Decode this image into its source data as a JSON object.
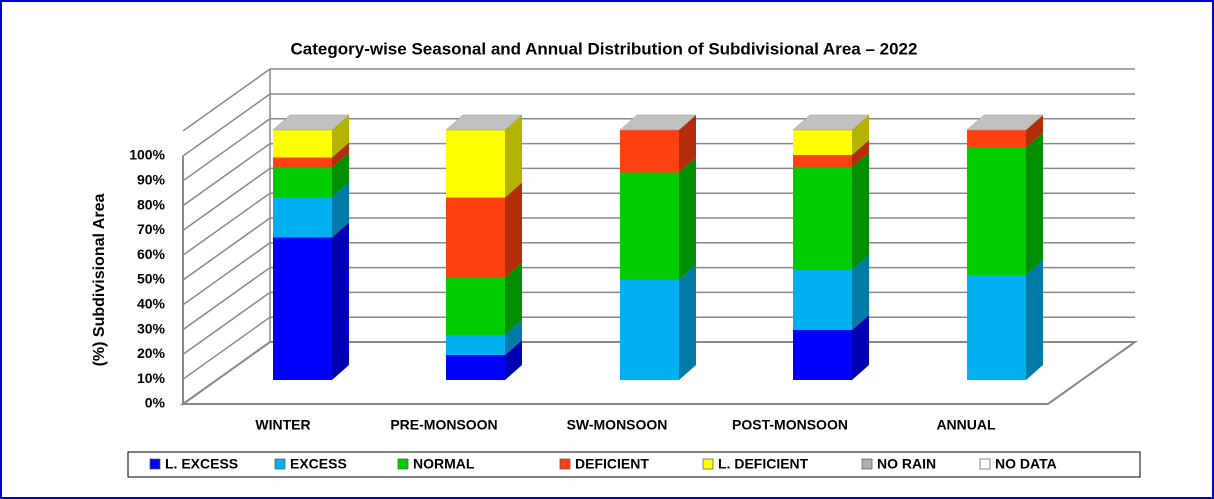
{
  "chart_data": {
    "type": "bar3d_stacked",
    "title": "Category-wise Seasonal and Annual Distribution of Subdivisional Area – 2022",
    "y_label": "(%) Subdivisional Area",
    "categories": [
      "WINTER",
      "PRE-MONSOON",
      "SW-MONSOON",
      "POST-MONSOON",
      "ANNUAL"
    ],
    "series": [
      {
        "name": "L. EXCESS",
        "color": "#0000ff",
        "values": [
          57,
          10,
          0,
          20,
          0
        ]
      },
      {
        "name": "EXCESS",
        "color": "#00b0f0",
        "values": [
          16,
          8,
          40,
          24,
          42
        ]
      },
      {
        "name": "NORMAL",
        "color": "#00cc00",
        "values": [
          12,
          23,
          43,
          41,
          51
        ]
      },
      {
        "name": "DEFICIENT",
        "color": "#ff4010",
        "values": [
          4,
          32,
          17,
          5,
          7
        ]
      },
      {
        "name": "L. DEFICIENT",
        "color": "#ffff00",
        "values": [
          11,
          27,
          0,
          10,
          0
        ]
      },
      {
        "name": "NO RAIN",
        "color": "#b0b0b0",
        "values": [
          0,
          0,
          0,
          0,
          0
        ]
      },
      {
        "name": "NO DATA",
        "color": "#ffffff",
        "values": [
          0,
          0,
          0,
          0,
          0
        ]
      }
    ],
    "ylim": [
      0,
      100
    ],
    "yticks": [
      {
        "value": 0,
        "label": "0%"
      },
      {
        "value": 10,
        "label": "10%"
      },
      {
        "value": 20,
        "label": "20%"
      },
      {
        "value": 30,
        "label": "30%"
      },
      {
        "value": 40,
        "label": "40%"
      },
      {
        "value": 50,
        "label": "50%"
      },
      {
        "value": 60,
        "label": "60%"
      },
      {
        "value": 70,
        "label": "70%"
      },
      {
        "value": 80,
        "label": "80%"
      },
      {
        "value": 90,
        "label": "90%"
      },
      {
        "value": 100,
        "label": "100%"
      }
    ],
    "grid": true,
    "legend": "bottom"
  }
}
